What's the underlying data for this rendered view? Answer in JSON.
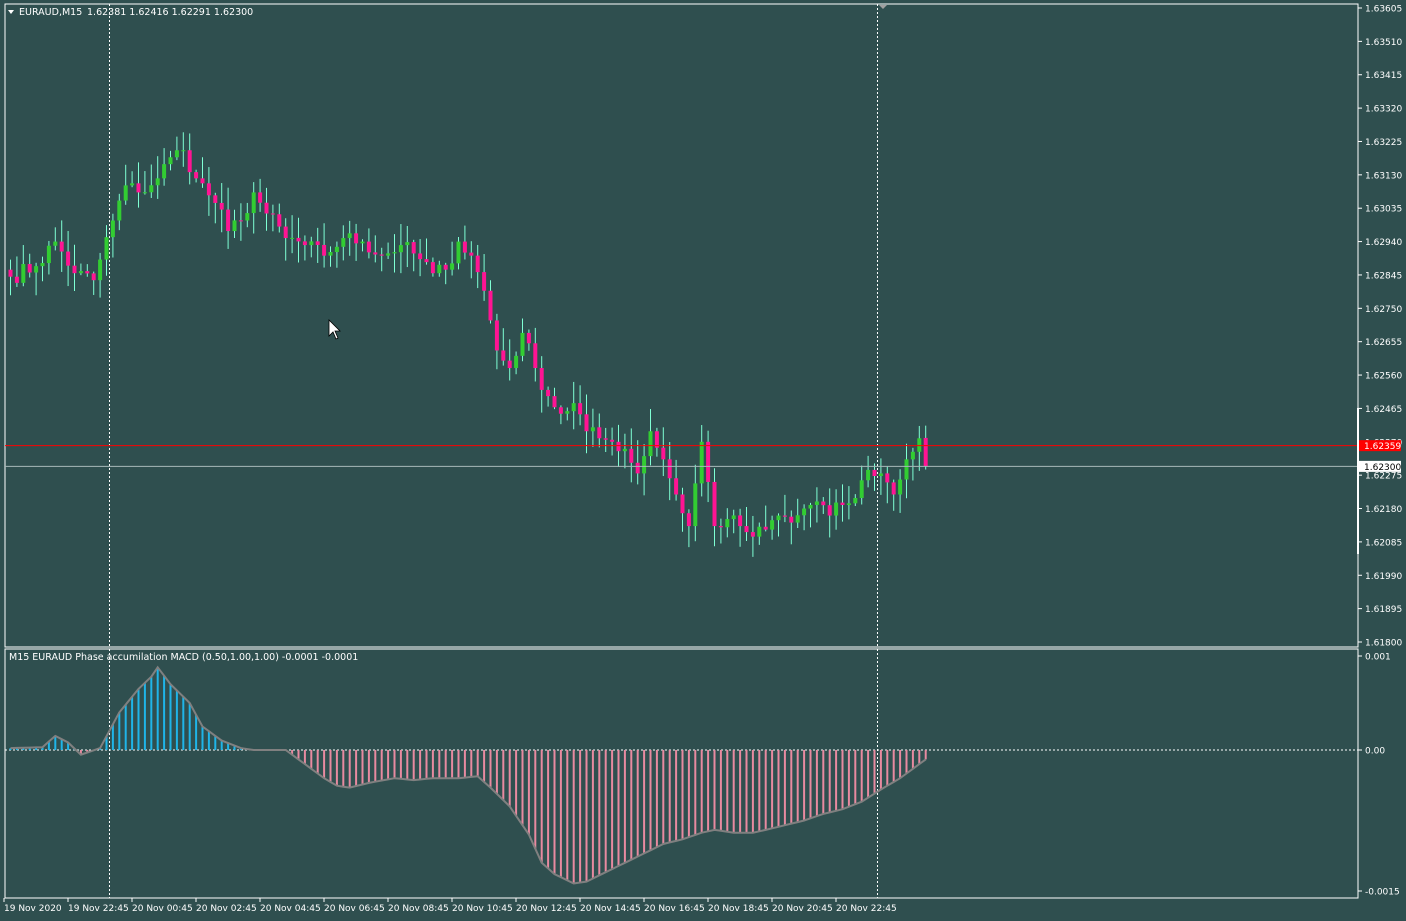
{
  "header": {
    "symbol_label": "EURAUD,M15",
    "ohlc_label": "1.62381 1.62416 1.62291 1.62300"
  },
  "indicator": {
    "label": "M15 EURAUD Phase accumilation MACD (0.50,1.00,1.00) -0.0001 -0.0001"
  },
  "colors": {
    "background": "#2f4f4f",
    "bull_candle": "#32cd32",
    "bear_candle": "#ff1493",
    "wick": "#7fffd4",
    "hist_positive": "#1fb5e8",
    "hist_negative": "#e88aa0",
    "signal_line": "#808080",
    "ask_line": "#ff0000",
    "bid_line": "#a9b9b9",
    "frame": "#ffffff"
  },
  "price_axis": {
    "ticks": [
      "1.63605",
      "1.63510",
      "1.63415",
      "1.63320",
      "1.63225",
      "1.63130",
      "1.63035",
      "1.62940",
      "1.62845",
      "1.62750",
      "1.62655",
      "1.62560",
      "1.62465",
      "1.62370",
      "1.62275",
      "1.62180",
      "1.62085",
      "1.61990",
      "1.61895",
      "1.61800"
    ],
    "ask_label": "1.62359",
    "bid_label": "1.62300"
  },
  "indicator_axis": {
    "ticks": [
      "0.001",
      "0.00",
      "-0.0015"
    ]
  },
  "time_axis": {
    "labels": [
      "19 Nov 2020",
      "19 Nov 22:45",
      "20 Nov 00:45",
      "20 Nov 02:45",
      "20 Nov 04:45",
      "20 Nov 06:45",
      "20 Nov 08:45",
      "20 Nov 10:45",
      "20 Nov 12:45",
      "20 Nov 14:45",
      "20 Nov 16:45",
      "20 Nov 18:45",
      "20 Nov 20:45",
      "20 Nov 22:45"
    ]
  },
  "chart_data": [
    {
      "type": "candlestick",
      "title": "EURAUD,M15",
      "ylim": [
        1.618,
        1.63605
      ],
      "ask_price": 1.62359,
      "bid_price": 1.623,
      "last_ohlc": [
        1.62381,
        1.62416,
        1.62291,
        1.623
      ],
      "close_anchors": [
        [
          0,
          1.6284
        ],
        [
          4,
          1.6287
        ],
        [
          7,
          1.6294
        ],
        [
          10,
          1.6285
        ],
        [
          13,
          1.6283
        ],
        [
          16,
          1.63
        ],
        [
          18,
          1.631
        ],
        [
          20,
          1.6308
        ],
        [
          23,
          1.6312
        ],
        [
          25,
          1.6318
        ],
        [
          27,
          1.632
        ],
        [
          29,
          1.6312
        ],
        [
          32,
          1.6305
        ],
        [
          34,
          1.6297
        ],
        [
          36,
          1.63
        ],
        [
          38,
          1.6308
        ],
        [
          40,
          1.6302
        ],
        [
          43,
          1.6295
        ],
        [
          46,
          1.6293
        ],
        [
          49,
          1.629
        ],
        [
          52,
          1.6295
        ],
        [
          55,
          1.6294
        ],
        [
          58,
          1.629
        ],
        [
          61,
          1.6293
        ],
        [
          64,
          1.6289
        ],
        [
          66,
          1.6285
        ],
        [
          68,
          1.6286
        ],
        [
          70,
          1.6294
        ],
        [
          72,
          1.629
        ],
        [
          74,
          1.628
        ],
        [
          76,
          1.6263
        ],
        [
          78,
          1.6258
        ],
        [
          80,
          1.6268
        ],
        [
          82,
          1.6258
        ],
        [
          84,
          1.625
        ],
        [
          86,
          1.6245
        ],
        [
          88,
          1.6248
        ],
        [
          90,
          1.624
        ],
        [
          92,
          1.6238
        ],
        [
          94,
          1.6237
        ],
        [
          96,
          1.6235
        ],
        [
          98,
          1.6228
        ],
        [
          100,
          1.624
        ],
        [
          102,
          1.6232
        ],
        [
          104,
          1.6222
        ],
        [
          106,
          1.6213
        ],
        [
          108,
          1.6237
        ],
        [
          110,
          1.6213
        ],
        [
          112,
          1.6215
        ],
        [
          114,
          1.6213
        ],
        [
          116,
          1.621
        ],
        [
          118,
          1.6212
        ],
        [
          120,
          1.6216
        ],
        [
          122,
          1.6214
        ],
        [
          124,
          1.6218
        ],
        [
          126,
          1.622
        ],
        [
          128,
          1.6216
        ],
        [
          130,
          1.6219
        ],
        [
          132,
          1.6221
        ],
        [
          134,
          1.6229
        ],
        [
          136,
          1.6228
        ],
        [
          138,
          1.6222
        ],
        [
          140,
          1.6232
        ],
        [
          142,
          1.6238
        ],
        [
          143,
          1.623
        ]
      ]
    },
    {
      "type": "bar",
      "title": "M15 EURAUD Phase accumilation MACD (0.50,1.00,1.00)",
      "ylim": [
        -0.0015,
        0.001
      ],
      "zero_line": 0,
      "anchors": [
        [
          0,
          2e-05
        ],
        [
          5,
          3e-05
        ],
        [
          7,
          0.00015
        ],
        [
          9,
          8e-05
        ],
        [
          11,
          -5e-05
        ],
        [
          14,
          2e-05
        ],
        [
          17,
          0.0004
        ],
        [
          20,
          0.00065
        ],
        [
          22,
          0.00078
        ],
        [
          23,
          0.00088
        ],
        [
          25,
          0.0007
        ],
        [
          28,
          0.0005
        ],
        [
          30,
          0.00025
        ],
        [
          33,
          0.0001
        ],
        [
          36,
          2e-05
        ],
        [
          38,
          0.0
        ],
        [
          43,
          -0.0
        ],
        [
          46,
          -0.00015
        ],
        [
          49,
          -0.0003
        ],
        [
          51,
          -0.00038
        ],
        [
          53,
          -0.0004
        ],
        [
          56,
          -0.00035
        ],
        [
          60,
          -0.0003
        ],
        [
          63,
          -0.00032
        ],
        [
          66,
          -0.0003
        ],
        [
          70,
          -0.0003
        ],
        [
          73,
          -0.00028
        ],
        [
          75,
          -0.0004
        ],
        [
          78,
          -0.0006
        ],
        [
          81,
          -0.0009
        ],
        [
          83,
          -0.0012
        ],
        [
          85,
          -0.00132
        ],
        [
          88,
          -0.00142
        ],
        [
          90,
          -0.0014
        ],
        [
          93,
          -0.0013
        ],
        [
          96,
          -0.0012
        ],
        [
          99,
          -0.0011
        ],
        [
          102,
          -0.001
        ],
        [
          105,
          -0.00095
        ],
        [
          108,
          -0.00088
        ],
        [
          110,
          -0.00085
        ],
        [
          113,
          -0.00088
        ],
        [
          116,
          -0.00088
        ],
        [
          118,
          -0.00085
        ],
        [
          121,
          -0.0008
        ],
        [
          124,
          -0.00075
        ],
        [
          127,
          -0.00068
        ],
        [
          130,
          -0.00063
        ],
        [
          133,
          -0.00055
        ],
        [
          136,
          -0.00042
        ],
        [
          139,
          -0.0003
        ],
        [
          141,
          -0.0002
        ],
        [
          143,
          -0.0001
        ]
      ]
    }
  ]
}
